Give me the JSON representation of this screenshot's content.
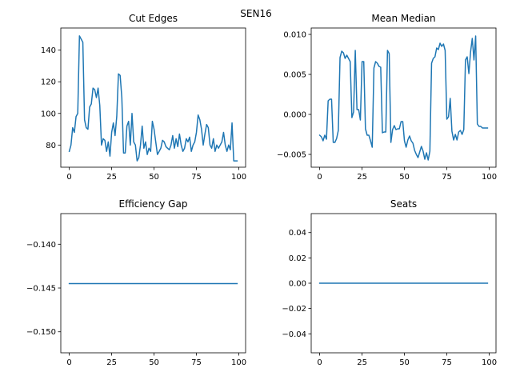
{
  "figure": {
    "suptitle": "SEN16"
  },
  "chart_data": [
    {
      "type": "line",
      "title": "Cut Edges",
      "xlabel": "",
      "ylabel": "",
      "xlim": [
        -5,
        104
      ],
      "ylim": [
        66,
        154
      ],
      "xticks": [
        0,
        25,
        50,
        75,
        100
      ],
      "xtick_labels": [
        "0",
        "25",
        "50",
        "75",
        "100"
      ],
      "yticks": [
        80,
        100,
        120,
        140
      ],
      "ytick_labels": [
        "80",
        "100",
        "120",
        "140"
      ],
      "grid": false,
      "color": "#1f77b4",
      "x": [
        0,
        1,
        2,
        3,
        4,
        5,
        6,
        7,
        8,
        9,
        10,
        11,
        12,
        13,
        14,
        15,
        16,
        17,
        18,
        19,
        20,
        21,
        22,
        23,
        24,
        25,
        26,
        27,
        28,
        29,
        30,
        31,
        32,
        33,
        34,
        35,
        36,
        37,
        38,
        39,
        40,
        41,
        42,
        43,
        44,
        45,
        46,
        47,
        48,
        49,
        50,
        51,
        52,
        53,
        54,
        55,
        56,
        57,
        58,
        59,
        60,
        61,
        62,
        63,
        64,
        65,
        66,
        67,
        68,
        69,
        70,
        71,
        72,
        73,
        74,
        75,
        76,
        77,
        78,
        79,
        80,
        81,
        82,
        83,
        84,
        85,
        86,
        87,
        88,
        89,
        90,
        91,
        92,
        93,
        94,
        95,
        96,
        97,
        98,
        99
      ],
      "y": [
        76,
        80,
        91,
        88,
        98,
        100,
        149,
        147,
        145,
        96,
        91,
        90,
        104,
        106,
        116,
        115,
        110,
        116,
        105,
        80,
        84,
        83,
        76,
        82,
        73,
        88,
        94,
        86,
        98,
        125,
        124,
        110,
        75,
        75,
        92,
        95,
        80,
        100,
        82,
        80,
        70,
        72,
        80,
        92,
        78,
        82,
        74,
        78,
        76,
        95,
        90,
        82,
        74,
        76,
        78,
        83,
        82,
        79,
        78,
        77,
        80,
        86,
        78,
        84,
        79,
        87,
        80,
        76,
        78,
        84,
        82,
        85,
        76,
        80,
        82,
        88,
        99,
        96,
        90,
        80,
        87,
        93,
        91,
        80,
        78,
        84,
        76,
        80,
        78,
        80,
        82,
        88,
        80,
        76,
        80,
        77,
        94,
        70,
        70,
        70
      ],
      "annotations": []
    },
    {
      "type": "line",
      "title": "Mean Median",
      "xlabel": "",
      "ylabel": "",
      "xlim": [
        -5,
        104
      ],
      "ylim": [
        -0.0066,
        0.0108
      ],
      "xticks": [
        0,
        25,
        50,
        75,
        100
      ],
      "xtick_labels": [
        "0",
        "25",
        "50",
        "75",
        "100"
      ],
      "yticks": [
        -0.005,
        0.0,
        0.005,
        0.01
      ],
      "ytick_labels": [
        "−0.005",
        "0.000",
        "0.005",
        "0.010"
      ],
      "grid": false,
      "color": "#1f77b4",
      "x": [
        0,
        1,
        2,
        3,
        4,
        5,
        6,
        7,
        8,
        9,
        10,
        11,
        12,
        13,
        14,
        15,
        16,
        17,
        18,
        19,
        20,
        21,
        22,
        23,
        24,
        25,
        26,
        27,
        28,
        29,
        30,
        31,
        32,
        33,
        34,
        35,
        36,
        37,
        38,
        39,
        40,
        41,
        42,
        43,
        44,
        45,
        46,
        47,
        48,
        49,
        50,
        51,
        52,
        53,
        54,
        55,
        56,
        57,
        58,
        59,
        60,
        61,
        62,
        63,
        64,
        65,
        66,
        67,
        68,
        69,
        70,
        71,
        72,
        73,
        74,
        75,
        76,
        77,
        78,
        79,
        80,
        81,
        82,
        83,
        84,
        85,
        86,
        87,
        88,
        89,
        90,
        91,
        92,
        93,
        94,
        95,
        96,
        97,
        98,
        99
      ],
      "y": [
        -0.0026,
        -0.0028,
        -0.0033,
        -0.0026,
        -0.0031,
        0.0017,
        0.0019,
        0.0019,
        -0.0035,
        -0.0035,
        -0.003,
        -0.002,
        0.0071,
        0.0079,
        0.0077,
        0.007,
        0.0074,
        0.007,
        0.0066,
        -0.0004,
        0.0003,
        0.008,
        0.0006,
        0.0006,
        -0.0007,
        0.0066,
        0.0066,
        -0.0018,
        -0.0026,
        -0.0026,
        -0.0033,
        -0.0041,
        0.0058,
        0.0066,
        0.0064,
        0.006,
        0.0059,
        -0.0023,
        -0.0022,
        -0.0022,
        0.008,
        0.0076,
        -0.0035,
        -0.0019,
        -0.0014,
        -0.0019,
        -0.0018,
        -0.0018,
        -0.0009,
        -0.0009,
        -0.0033,
        -0.0041,
        -0.0032,
        -0.0027,
        -0.0033,
        -0.0036,
        -0.0045,
        -0.005,
        -0.0054,
        -0.0047,
        -0.004,
        -0.0046,
        -0.0056,
        -0.0048,
        -0.0057,
        -0.0046,
        0.0064,
        0.007,
        0.0072,
        0.0083,
        0.0081,
        0.0089,
        0.0085,
        0.0088,
        0.008,
        -0.0006,
        -0.0003,
        0.002,
        -0.0021,
        -0.0032,
        -0.0025,
        -0.0032,
        -0.0022,
        -0.002,
        -0.0025,
        -0.0019,
        0.0068,
        0.0072,
        0.0051,
        0.0078,
        0.0095,
        0.0068,
        0.0098,
        -0.0012,
        -0.0015,
        -0.0015,
        -0.0017,
        -0.0017,
        -0.0017,
        -0.0017
      ],
      "annotations": []
    },
    {
      "type": "line",
      "title": "Efficiency Gap",
      "xlabel": "",
      "ylabel": "",
      "xlim": [
        -5,
        104
      ],
      "ylim": [
        -0.1524,
        -0.1365
      ],
      "xticks": [
        0,
        25,
        50,
        75,
        100
      ],
      "xtick_labels": [
        "0",
        "25",
        "50",
        "75",
        "100"
      ],
      "yticks": [
        -0.15,
        -0.145,
        -0.14
      ],
      "ytick_labels": [
        "−0.150",
        "−0.145",
        "−0.140"
      ],
      "grid": false,
      "color": "#1f77b4",
      "x": [
        0,
        99
      ],
      "y": [
        -0.1445,
        -0.1445
      ],
      "annotations": []
    },
    {
      "type": "line",
      "title": "Seats",
      "xlabel": "",
      "ylabel": "",
      "xlim": [
        -5,
        104
      ],
      "ylim": [
        -0.055,
        0.055
      ],
      "xticks": [
        0,
        25,
        50,
        75,
        100
      ],
      "xtick_labels": [
        "0",
        "25",
        "50",
        "75",
        "100"
      ],
      "yticks": [
        -0.04,
        -0.02,
        0.0,
        0.02,
        0.04
      ],
      "ytick_labels": [
        "−0.04",
        "−0.02",
        "0.00",
        "0.02",
        "0.04"
      ],
      "grid": false,
      "color": "#1f77b4",
      "x": [
        0,
        99
      ],
      "y": [
        0.0,
        0.0
      ],
      "annotations": []
    }
  ]
}
